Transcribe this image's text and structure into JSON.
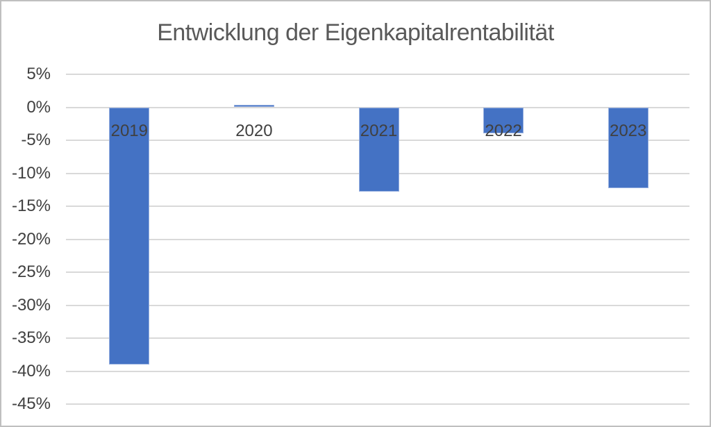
{
  "frame": {
    "background": "#ffffff",
    "border_color": "#bfbfbf"
  },
  "chart_data": {
    "type": "bar",
    "title": "Entwicklung der Eigenkapitalrentabilität",
    "categories": [
      "2019",
      "2020",
      "2021",
      "2022",
      "2023"
    ],
    "values": [
      -39.0,
      0.4,
      -12.8,
      -3.9,
      -12.3
    ],
    "value_unit": "%",
    "xlabel": "",
    "ylabel": "",
    "ylim": [
      -45,
      5
    ],
    "ytick_step": 5,
    "yticks": [
      5,
      0,
      -5,
      -10,
      -15,
      -20,
      -25,
      -30,
      -35,
      -40,
      -45
    ],
    "ytick_labels": [
      "5%",
      "0%",
      "-5%",
      "-10%",
      "-15%",
      "-20%",
      "-25%",
      "-30%",
      "-35%",
      "-40%",
      "-45%"
    ],
    "grid": true,
    "legend": "none",
    "colors": {
      "bar": "#4472c4",
      "bar_edge": "#96afdf",
      "gridline": "#d9d9d9",
      "title_text": "#595959",
      "axis_text": "#404040"
    }
  }
}
